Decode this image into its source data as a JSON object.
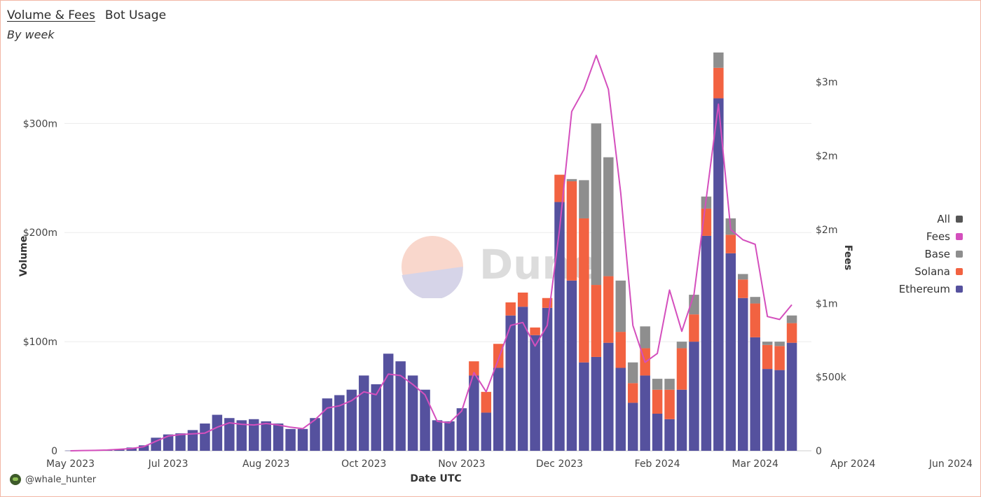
{
  "tabs": [
    {
      "label": "Volume & Fees",
      "active": true
    },
    {
      "label": "Bot Usage",
      "active": false
    }
  ],
  "subtitle": "By week",
  "legend": [
    {
      "label": "All",
      "color": "#555555"
    },
    {
      "label": "Fees",
      "color": "#d44fbd"
    },
    {
      "label": "Base",
      "color": "#8e8e8e"
    },
    {
      "label": "Solana",
      "color": "#f26241"
    },
    {
      "label": "Ethereum",
      "color": "#55519e"
    }
  ],
  "watermark": "Dune",
  "footer": {
    "handle": "@whale_hunter"
  },
  "chart_data": {
    "type": "bar",
    "stacked": true,
    "xlabel": "Date UTC",
    "ylabel": "Volume",
    "y2label": "Fees",
    "x_tick_labels": [
      "May 2023",
      "Jul 2023",
      "Aug 2023",
      "Oct 2023",
      "Nov 2023",
      "Dec 2023",
      "Feb 2024",
      "Mar 2024",
      "Apr 2024",
      "Jun 2024"
    ],
    "x_tick_weeks": [
      0,
      8,
      16,
      24,
      32,
      40,
      48,
      56,
      64,
      72
    ],
    "y_ticks": [
      "0",
      "$100m",
      "$200m",
      "$300m"
    ],
    "y_tick_values": [
      0,
      100,
      200,
      300
    ],
    "ylim": [
      0,
      365
    ],
    "y2_ticks": [
      "0",
      "$500k",
      "$1m",
      "$2m",
      "$2m",
      "$3m"
    ],
    "y2_tick_values": [
      0,
      500,
      1000,
      1500,
      2000,
      2500
    ],
    "y2lim": [
      0,
      2700
    ],
    "grid": true,
    "legend_position": "right",
    "units": "Volume in $m (weekly), Fees in $k (weekly)",
    "series": [
      {
        "name": "Ethereum",
        "color": "#55519e",
        "values": [
          0.2,
          0.3,
          0.5,
          0.8,
          1.5,
          3,
          5,
          12,
          15,
          16,
          19,
          25,
          33,
          30,
          28,
          29,
          27,
          25,
          20,
          20,
          30,
          48,
          51,
          56,
          69,
          61,
          89,
          82,
          69,
          56,
          28,
          27,
          39,
          69,
          35,
          76,
          124,
          132,
          106,
          131,
          228,
          156,
          81,
          86,
          99,
          76,
          44,
          69,
          34,
          29,
          56,
          100,
          197,
          323,
          181,
          140,
          104,
          75,
          74,
          99
        ]
      },
      {
        "name": "Solana",
        "color": "#f26241",
        "values": [
          0,
          0,
          0,
          0,
          0,
          0,
          0,
          0,
          0,
          0,
          0,
          0,
          0,
          0,
          0,
          0,
          0,
          0,
          0,
          0,
          0,
          0,
          0,
          0,
          0,
          0,
          0,
          0,
          0,
          0,
          0,
          0,
          0,
          13,
          19,
          22,
          12,
          13,
          7,
          9,
          25,
          91,
          132,
          66,
          61,
          33,
          18,
          25,
          22,
          27,
          38,
          25,
          25,
          28,
          17,
          17,
          31,
          22,
          22,
          18
        ]
      },
      {
        "name": "Base",
        "color": "#8e8e8e",
        "values": [
          0,
          0,
          0,
          0,
          0,
          0,
          0,
          0,
          0,
          0,
          0,
          0,
          0,
          0,
          0,
          0,
          0,
          0,
          0,
          0,
          0,
          0,
          0,
          0,
          0,
          0,
          0,
          0,
          0,
          0,
          0,
          0,
          0,
          0,
          0,
          0,
          0,
          0,
          0,
          0,
          0,
          2,
          35,
          148,
          109,
          47,
          19,
          20,
          10,
          10,
          6,
          18,
          11,
          14,
          15,
          5,
          6,
          3,
          4,
          7
        ]
      },
      {
        "name": "Fees",
        "type": "line",
        "axis": "right",
        "color": "#d44fbd",
        "values": [
          0,
          2,
          3,
          5,
          10,
          15,
          28,
          65,
          100,
          110,
          115,
          120,
          160,
          190,
          180,
          175,
          185,
          175,
          160,
          150,
          210,
          290,
          305,
          340,
          400,
          380,
          520,
          510,
          450,
          380,
          200,
          190,
          270,
          530,
          400,
          620,
          850,
          870,
          710,
          850,
          1500,
          2300,
          2450,
          2680,
          2450,
          1750,
          850,
          600,
          660,
          1090,
          810,
          1060,
          1710,
          2350,
          1500,
          1430,
          1400,
          910,
          890,
          990
        ]
      }
    ]
  }
}
